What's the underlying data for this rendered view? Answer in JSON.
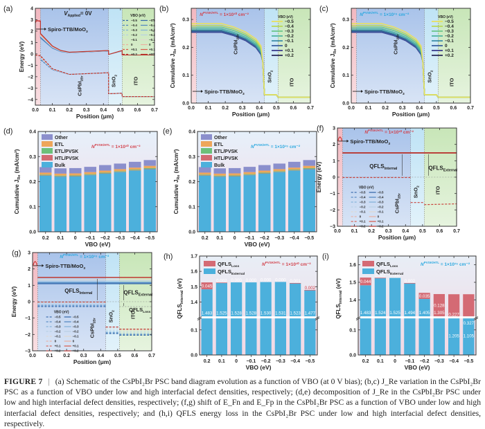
{
  "figure": {
    "caption_label": "FIGURE 7",
    "caption_text": "(a) Schematic of the CsPbI₂Br PSC band diagram evolution as a function of VBO (at 0 V bias); (b,c) J_Re variation in the CsPbI₂Br PSC as a function of VBO under low and high interfacial defect densities, respectively; (d,e) decomposition of J_Re in the CsPbI₂Br PSC under low and high interfacial defect densities, respectively; (f,g) shift of E_Fn and E_Fp in the CsPbI₂Br PSC as a function of VBO under low and high interfacial defect densities, respectively; and (h,i) QFLS energy loss in the CsPbI₂Br PSC under low and high interfacial defect densities, respectively."
  },
  "colors": {
    "htl_region": "#f2b8c0",
    "pvsk_region": "#a9c3ea",
    "sno2_region": "#bfe3f5",
    "ito_region": "#c8e6b8",
    "low_defect_text": "#d2404a",
    "high_defect_text": "#2aa8df",
    "bulk": "#4cb0dc",
    "htl_pvsk": "#d26a73",
    "etl_pvsk": "#6cc07a",
    "etl": "#eea65a",
    "other": "#8b8fcc",
    "qfls_loss": "#d46a74",
    "qfls_external": "#4cb0dc"
  },
  "vbo_legend": {
    "title": "VBO (eV)",
    "values": [
      "−0.5",
      "−0.4",
      "−0.3",
      "−0.2",
      "−0.1",
      "0",
      "+0.1",
      "+0.2"
    ],
    "line_colors_jre": [
      "#e8e060",
      "#b8d85a",
      "#6cc68a",
      "#4fb3a0",
      "#3e8fa8",
      "#3b5fa0",
      "#3a3d8c",
      "#2b2a5a"
    ],
    "line_colors_band": [
      "#2f64a8",
      "#4f84c0",
      "#7fb0d8",
      "#b8d0e4",
      "#e0d8d0",
      "#e9b0a0",
      "#d85a4a",
      "#b8302a"
    ]
  },
  "region_labels": {
    "htl": "Spiro-TTB/MoO₃",
    "pvsk": "CsPbI₂Br",
    "etl": "SnO₂",
    "tco": "ITO"
  },
  "chart_data": [
    {
      "panel": "(a)",
      "type": "line",
      "title": "V_Applied = 0V",
      "xlabel": "Position (μm)",
      "ylabel": "Energy (eV)",
      "xlim": [
        0,
        0.7
      ],
      "ylim": [
        -4.5,
        4
      ],
      "xticks": [
        "0.0",
        "0.1",
        "0.2",
        "0.3",
        "0.4",
        "0.5",
        "0.6",
        "0.7"
      ],
      "yticks": [
        "−4",
        "−3",
        "−2",
        "−1",
        "0",
        "1",
        "2",
        "3",
        "4"
      ],
      "regions": [
        [
          0,
          0.03
        ],
        [
          0.03,
          0.43
        ],
        [
          0.43,
          0.51
        ],
        [
          0.51,
          0.7
        ]
      ],
      "series": [
        {
          "name": "Ec (VBO -0.5)",
          "x": [
            0,
            0.03,
            0.03,
            0.1,
            0.15,
            0.2,
            0.43,
            0.43,
            0.51,
            0.51,
            0.7
          ],
          "y": [
            2.9,
            2.9,
            1.4,
            0.5,
            0.2,
            0.1,
            0.25,
            -0.05,
            0.25,
            -0.1,
            -0.1
          ]
        },
        {
          "name": "Ec (VBO +0.2)",
          "x": [
            0,
            0.03,
            0.03,
            0.1,
            0.15,
            0.2,
            0.43,
            0.43,
            0.51,
            0.51,
            0.7
          ],
          "y": [
            2.9,
            2.9,
            1.8,
            0.7,
            0.3,
            0.15,
            0.3,
            -0.05,
            0.3,
            -0.1,
            -0.1
          ]
        },
        {
          "name": "Ev (VBO -0.5)",
          "x": [
            0,
            0.03,
            0.03,
            0.1,
            0.2,
            0.43,
            0.43,
            0.51,
            0.51,
            0.7
          ],
          "y": [
            -0.1,
            -0.2,
            -0.5,
            -1.4,
            -1.8,
            -1.65,
            -3.5,
            -3.45,
            -3.75,
            -3.75
          ]
        },
        {
          "name": "Ev (VBO +0.2)",
          "x": [
            0,
            0.03,
            0.03,
            0.1,
            0.2,
            0.43,
            0.43,
            0.51,
            0.51,
            0.7
          ],
          "y": [
            -0.1,
            -0.15,
            -0.15,
            -1.3,
            -1.8,
            -1.65,
            -3.5,
            -3.45,
            -3.75,
            -3.75
          ]
        }
      ]
    },
    {
      "panel": "(b)",
      "type": "line",
      "annotation": "N_t^PVSK/HTL = 1×10¹⁰ cm⁻²",
      "annotation_color": "low",
      "xlabel": "Position (μm)",
      "ylabel": "Cumulative J_Re (mA/cm²)",
      "xlim": [
        0,
        0.7
      ],
      "ylim": [
        0,
        0.34
      ],
      "xticks": [
        "0.0",
        "0.1",
        "0.2",
        "0.3",
        "0.4",
        "0.5",
        "0.6",
        "0.7"
      ],
      "yticks": [
        "0.0",
        "0.1",
        "0.2",
        "0.3"
      ],
      "regions": [
        [
          0,
          0.03
        ],
        [
          0.03,
          0.43
        ],
        [
          0.43,
          0.51
        ],
        [
          0.51,
          0.7
        ]
      ],
      "plateau_by_vbo": [
        0.285,
        0.278,
        0.272,
        0.266,
        0.261,
        0.256,
        0.254,
        0.258
      ],
      "tail": {
        "x_sno2": [
          0.43,
          0.5,
          0.51,
          0.7
        ],
        "y": [
          0.03,
          0.03,
          0.021,
          0.021
        ]
      }
    },
    {
      "panel": "(c)",
      "type": "line",
      "annotation": "N_t^PVSK/HTL = 1×10¹⁵ cm⁻²",
      "annotation_color": "high",
      "xlabel": "Position (μm)",
      "ylabel": "Cumulative J_Re (mA/cm²)",
      "xlim": [
        0,
        0.7
      ],
      "ylim": [
        0,
        0.34
      ],
      "xticks": [
        "0.0",
        "0.1",
        "0.2",
        "0.3",
        "0.4",
        "0.5",
        "0.6",
        "0.7"
      ],
      "yticks": [
        "0.0",
        "0.1",
        "0.2",
        "0.3"
      ],
      "regions": [
        [
          0,
          0.03
        ],
        [
          0.03,
          0.43
        ],
        [
          0.43,
          0.51
        ],
        [
          0.51,
          0.7
        ]
      ],
      "plateau_by_vbo": [
        0.285,
        0.278,
        0.272,
        0.266,
        0.261,
        0.256,
        0.254,
        0.258
      ],
      "tail": {
        "x_sno2": [
          0.43,
          0.5,
          0.51,
          0.7
        ],
        "y": [
          0.03,
          0.03,
          0.021,
          0.021
        ]
      }
    },
    {
      "panel": "(d)",
      "type": "bar",
      "stacked": true,
      "annotation": "N_t^PVSK/HTL = 1×10¹⁰ cm⁻²",
      "annotation_color": "low",
      "xlabel": "VBO (eV)",
      "ylabel": "Cumulative J_Re (mA/cm²)",
      "ylim": [
        0,
        0.4
      ],
      "yticks": [
        "0.0",
        "0.1",
        "0.2",
        "0.3",
        "0.4"
      ],
      "categories": [
        "0.2",
        "0.1",
        "0",
        "−0.1",
        "−0.2",
        "−0.3",
        "−0.4",
        "−0.5"
      ],
      "legend": [
        "Other",
        "ETL",
        "ETL/PVSK",
        "HTL/PVSK",
        "Bulk"
      ],
      "series": [
        {
          "name": "Bulk",
          "values": [
            0.224,
            0.22,
            0.221,
            0.226,
            0.232,
            0.238,
            0.244,
            0.25
          ]
        },
        {
          "name": "HTL/PVSK",
          "values": [
            0.001,
            0.001,
            0.001,
            0.001,
            0.001,
            0.001,
            0.001,
            0.001
          ]
        },
        {
          "name": "ETL/PVSK",
          "values": [
            0.003,
            0.003,
            0.003,
            0.003,
            0.003,
            0.003,
            0.003,
            0.003
          ]
        },
        {
          "name": "ETL",
          "values": [
            0.008,
            0.008,
            0.008,
            0.008,
            0.008,
            0.008,
            0.008,
            0.009
          ]
        },
        {
          "name": "Other",
          "values": [
            0.022,
            0.021,
            0.021,
            0.021,
            0.022,
            0.022,
            0.023,
            0.023
          ]
        }
      ]
    },
    {
      "panel": "(e)",
      "type": "bar",
      "stacked": true,
      "annotation": "N_t^PVSK/HTL = 1×10¹⁵ cm⁻²",
      "annotation_color": "high",
      "xlabel": "VBO (eV)",
      "ylabel": "Cumulative J_Re (mA/cm²)",
      "ylim": [
        0,
        0.4
      ],
      "yticks": [
        "0.0",
        "0.1",
        "0.2",
        "0.3",
        "0.4"
      ],
      "categories": [
        "0.2",
        "0.1",
        "0",
        "−0.1",
        "−0.2",
        "−0.3",
        "−0.4",
        "−0.5"
      ],
      "legend": [
        "Other",
        "ETL",
        "ETL/PVSK",
        "HTL/PVSK",
        "Bulk"
      ],
      "series": [
        {
          "name": "Bulk",
          "values": [
            0.224,
            0.22,
            0.221,
            0.226,
            0.232,
            0.238,
            0.244,
            0.25
          ]
        },
        {
          "name": "HTL/PVSK",
          "values": [
            0.001,
            0.001,
            0.001,
            0.001,
            0.001,
            0.001,
            0.001,
            0.001
          ]
        },
        {
          "name": "ETL/PVSK",
          "values": [
            0.003,
            0.003,
            0.003,
            0.003,
            0.003,
            0.003,
            0.003,
            0.003
          ]
        },
        {
          "name": "ETL",
          "values": [
            0.008,
            0.008,
            0.008,
            0.008,
            0.008,
            0.008,
            0.008,
            0.009
          ]
        },
        {
          "name": "Other",
          "values": [
            0.022,
            0.021,
            0.021,
            0.021,
            0.022,
            0.022,
            0.023,
            0.023
          ]
        }
      ]
    },
    {
      "panel": "(f)",
      "type": "line",
      "annotation": "N_t^PVSK/HTL = 1×10¹⁰ cm⁻²",
      "annotation_color": "low",
      "xlabel": "Position (μm)",
      "ylabel": "Energy (eV)",
      "xlim": [
        0,
        0.7
      ],
      "ylim": [
        -3,
        3
      ],
      "xticks": [
        "0.0",
        "0.1",
        "0.2",
        "0.3",
        "0.4",
        "0.5",
        "0.6",
        "0.7"
      ],
      "yticks": [
        "−3",
        "−2",
        "−1",
        "0",
        "1",
        "2",
        "3"
      ],
      "regions": [
        [
          0,
          0.03
        ],
        [
          0.03,
          0.43
        ],
        [
          0.43,
          0.51
        ],
        [
          0.51,
          0.7
        ]
      ],
      "efn": 1.48,
      "efp_pvsk": [
        -0.02,
        -0.02
      ],
      "efp_sno2": -1.55,
      "efp_ito": -1.68,
      "labels": {
        "internal": "QFLS_Internal",
        "external": "QFLS_External"
      }
    },
    {
      "panel": "(g)",
      "type": "line",
      "annotation": "N_t^PVSK/HTL = 1×10¹⁵ cm⁻²",
      "annotation_color": "high",
      "xlabel": "Position (μm)",
      "ylabel": "Energy (eV)",
      "xlim": [
        0,
        0.7
      ],
      "ylim": [
        -3,
        3
      ],
      "xticks": [
        "0.0",
        "0.1",
        "0.2",
        "0.3",
        "0.4",
        "0.5",
        "0.6",
        "0.7"
      ],
      "yticks": [
        "−3",
        "−2",
        "−1",
        "0",
        "1",
        "2",
        "3"
      ],
      "regions": [
        [
          0,
          0.03
        ],
        [
          0.03,
          0.43
        ],
        [
          0.43,
          0.51
        ],
        [
          0.51,
          0.7
        ]
      ],
      "efn_by_vbo": [
        1.1,
        1.15,
        1.2,
        1.28,
        1.35,
        1.48,
        1.48,
        1.48
      ],
      "efp_pvsk_by_vbo": [
        -0.3,
        -0.25,
        -0.2,
        -0.12,
        -0.05,
        -0.02,
        -0.02,
        -0.02
      ],
      "efp_sno2_by_vbo": [
        -1.95,
        -1.9,
        -1.85,
        -1.75,
        -1.65,
        -1.55,
        -1.55,
        -1.55
      ],
      "efp_ito_by_vbo": [
        -2.05,
        -2.0,
        -1.95,
        -1.85,
        -1.75,
        -1.68,
        -1.68,
        -1.68
      ],
      "labels": {
        "internal": "QFLS_Internal",
        "external": "QFLS_External",
        "loss": "QFLS_Loss"
      }
    },
    {
      "panel": "(h)",
      "type": "bar",
      "stacked": true,
      "broken_axis": true,
      "annotation": "N_t^PVSK/HTL = 1×10¹⁰ cm⁻²",
      "annotation_color": "low",
      "xlabel": "VBO (eV)",
      "ylabel": "QFLS_Internal (eV)",
      "ylim_lower": [
        0,
        0.15
      ],
      "ylim_upper": [
        1.3,
        1.7
      ],
      "yticks_lower": [
        "0.0",
        "0.1"
      ],
      "yticks_upper": [
        "1.4",
        "1.5",
        "1.6",
        "1.7"
      ],
      "categories": [
        "0.2",
        "0.1",
        "0",
        "−0.1",
        "−0.2",
        "−0.3",
        "−0.4",
        "−0.5"
      ],
      "legend": [
        "QFLS_Loss",
        "QFLS_External"
      ],
      "series": [
        {
          "name": "QFLS_External",
          "values": [
            1.483,
            1.525,
            1.528,
            1.528,
            1.53,
            1.531,
            1.523,
            1.477
          ],
          "labels": [
            "1.483",
            "1.525",
            "1.528",
            "1.528",
            "1.530",
            "1.531",
            "1.523",
            "1.477"
          ]
        },
        {
          "name": "QFLS_Loss",
          "values": [
            0.045,
            0.002,
            0.0,
            0.0,
            0.0,
            0.0,
            0.001,
            0.002
          ],
          "labels": [
            "0.045",
            "0.002",
            "0.000",
            "0.000",
            "0.000",
            "0.000",
            "0.001",
            "0.002"
          ]
        }
      ]
    },
    {
      "panel": "(i)",
      "type": "bar",
      "stacked": true,
      "broken_axis": true,
      "annotation": "N_t^PVSK/HTL = 1×10¹⁵ cm⁻²",
      "annotation_color": "high",
      "xlabel": "VBO (eV)",
      "ylabel": "QFLS_Internal (eV)",
      "ylim_lower": [
        0,
        0.15
      ],
      "ylim_upper": [
        1.3,
        1.65
      ],
      "yticks_lower": [
        "0.0",
        "0.1"
      ],
      "yticks_upper": [
        "1.4",
        "1.5",
        "1.6"
      ],
      "categories": [
        "0.2",
        "0.1",
        "0",
        "−0.1",
        "−0.2",
        "−0.3",
        "−0.4",
        "−0.5"
      ],
      "legend": [
        "QFLS_Loss",
        "QFLS_External"
      ],
      "series": [
        {
          "name": "QFLS_External",
          "values": [
            1.483,
            1.524,
            1.525,
            1.494,
            1.405,
            1.305,
            1.205,
            1.105
          ],
          "labels": [
            "1.483",
            "1.524",
            "1.525",
            "1.494",
            "1.405",
            "1.305",
            "1.205",
            "1.105"
          ]
        },
        {
          "name": "QFLS_Loss",
          "values": [
            0.044,
            0.002,
            0.0,
            0.002,
            0.035,
            0.128,
            0.227,
            0.327
          ],
          "labels": [
            "0.044",
            "0.002",
            "0.000",
            "0.002",
            "0.035",
            "0.128",
            "0.227",
            "0.327"
          ]
        }
      ]
    }
  ]
}
